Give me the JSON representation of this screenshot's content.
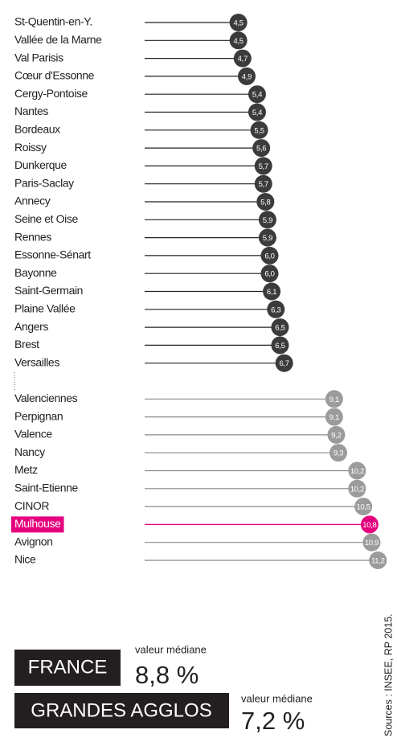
{
  "chart_data": {
    "type": "lollipop",
    "categories": [
      "St-Quentin-en-Y.",
      "Vallée de la Marne",
      "Val Parisis",
      "Cœur d'Essonne",
      "Cergy-Pontoise",
      "Nantes",
      "Bordeaux",
      "Roissy",
      "Dunkerque",
      "Paris-Saclay",
      "Annecy",
      "Seine et Oise",
      "Rennes",
      "Essonne-Sénart",
      "Bayonne",
      "Saint-Germain",
      "Plaine Vallée",
      "Angers",
      "Brest",
      "Versailles",
      null,
      "Valenciennes",
      "Perpignan",
      "Valence",
      "Nancy",
      "Metz",
      "Saint-Etienne",
      "CINOR",
      "Mulhouse",
      "Avignon",
      "Nice"
    ],
    "values": [
      4.5,
      4.5,
      4.7,
      4.9,
      5.4,
      5.4,
      5.5,
      5.6,
      5.7,
      5.7,
      5.8,
      5.9,
      5.9,
      6.0,
      6.0,
      6.1,
      6.3,
      6.5,
      6.5,
      6.7,
      null,
      9.1,
      9.1,
      9.2,
      9.3,
      10.2,
      10.2,
      10.5,
      10.8,
      10.9,
      11.2
    ],
    "value_labels": [
      "4,5",
      "4,5",
      "4,7",
      "4,9",
      "5,4",
      "5,4",
      "5,5",
      "5,6",
      "5,7",
      "5,7",
      "5,8",
      "5,9",
      "5,9",
      "6,0",
      "6,0",
      "6,1",
      "6,3",
      "6,5",
      "6,5",
      "6,7",
      null,
      "9,1",
      "9,1",
      "9,2",
      "9,3",
      "10,2",
      "10,2",
      "10,5",
      "10,8",
      "10,9",
      "11,2"
    ],
    "colors": [
      "#3b3b3b",
      "#3b3b3b",
      "#3b3b3b",
      "#3b3b3b",
      "#3b3b3b",
      "#3b3b3b",
      "#3b3b3b",
      "#3b3b3b",
      "#3b3b3b",
      "#3b3b3b",
      "#3b3b3b",
      "#3b3b3b",
      "#3b3b3b",
      "#3b3b3b",
      "#3b3b3b",
      "#3b3b3b",
      "#3b3b3b",
      "#3b3b3b",
      "#3b3b3b",
      "#3b3b3b",
      null,
      "#9b9b9b",
      "#9b9b9b",
      "#9b9b9b",
      "#9b9b9b",
      "#9b9b9b",
      "#9b9b9b",
      "#9b9b9b",
      "#e5007e",
      "#9b9b9b",
      "#9b9b9b"
    ],
    "highlight_color": "#e5007e",
    "xlim": [
      0,
      12
    ],
    "summary": [
      {
        "label": "FRANCE",
        "caption": "valeur médiane",
        "value_label": "8,8 %"
      },
      {
        "label": "GRANDES AGGLOS",
        "caption": "valeur médiane",
        "value_label": "7,2 %"
      }
    ],
    "source": "Sources : INSEE, RP 2015."
  }
}
